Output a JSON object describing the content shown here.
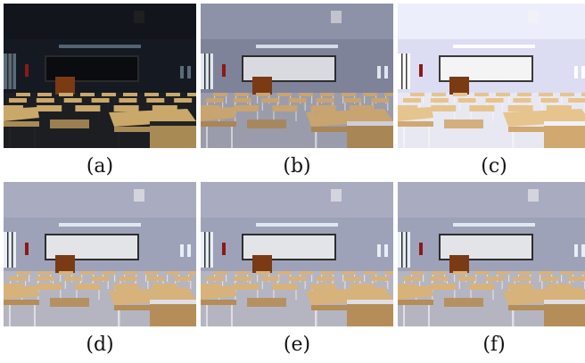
{
  "panels": [
    {
      "label": "(a)",
      "tone": "dark"
    },
    {
      "label": "(b)",
      "tone": "dim"
    },
    {
      "label": "(c)",
      "tone": "bright"
    },
    {
      "label": "(d)",
      "tone": "normal"
    },
    {
      "label": "(e)",
      "tone": "normal"
    },
    {
      "label": "(f)",
      "tone": "normal"
    }
  ]
}
